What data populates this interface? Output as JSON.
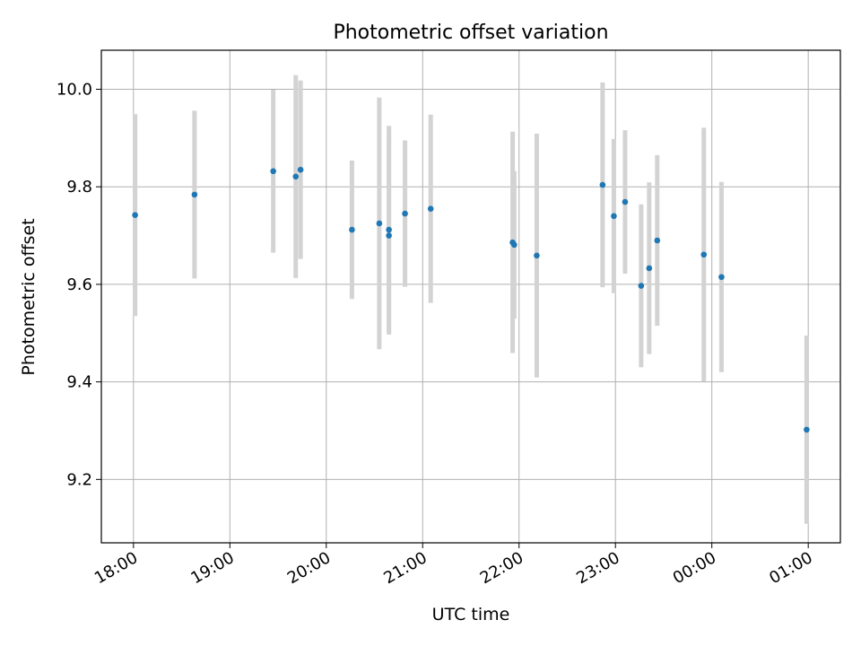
{
  "chart_data": {
    "type": "scatter",
    "title": "Photometric offset variation",
    "xlabel": "UTC time",
    "ylabel": "Photometric offset",
    "x_axis_kind": "time",
    "x_range": [
      "17:40",
      "01:20"
    ],
    "x_ticks": [
      "18:00",
      "19:00",
      "20:00",
      "21:00",
      "22:00",
      "23:00",
      "00:00",
      "01:00"
    ],
    "y_range": [
      9.07,
      10.08
    ],
    "y_ticks": [
      "9.2",
      "9.4",
      "9.6",
      "9.8",
      "10.0"
    ],
    "grid": true,
    "colors": {
      "point": "#1f77b4",
      "errorbar": "#d3d3d3",
      "grid": "#b0b0b0"
    },
    "points": [
      {
        "x": "18:01",
        "y": 9.742,
        "err": 0.207
      },
      {
        "x": "18:38",
        "y": 9.784,
        "err": 0.172
      },
      {
        "x": "19:27",
        "y": 9.832,
        "err": 0.167
      },
      {
        "x": "19:41",
        "y": 9.821,
        "err": 0.208
      },
      {
        "x": "19:44",
        "y": 9.835,
        "err": 0.183
      },
      {
        "x": "20:16",
        "y": 9.712,
        "err": 0.142
      },
      {
        "x": "20:33",
        "y": 9.725,
        "err": 0.258
      },
      {
        "x": "20:39",
        "y": 9.7,
        "err": 0.203
      },
      {
        "x": "20:39",
        "y": 9.712,
        "err": 0.213
      },
      {
        "x": "20:49",
        "y": 9.745,
        "err": 0.15
      },
      {
        "x": "21:05",
        "y": 9.755,
        "err": 0.193
      },
      {
        "x": "21:56",
        "y": 9.686,
        "err": 0.227
      },
      {
        "x": "21:57",
        "y": 9.681,
        "err": 0.151
      },
      {
        "x": "22:11",
        "y": 9.659,
        "err": 0.25
      },
      {
        "x": "22:52",
        "y": 9.804,
        "err": 0.21
      },
      {
        "x": "22:59",
        "y": 9.74,
        "err": 0.158
      },
      {
        "x": "23:06",
        "y": 9.769,
        "err": 0.147
      },
      {
        "x": "23:16",
        "y": 9.597,
        "err": 0.167
      },
      {
        "x": "23:21",
        "y": 9.633,
        "err": 0.176
      },
      {
        "x": "23:26",
        "y": 9.69,
        "err": 0.175
      },
      {
        "x": "23:55",
        "y": 9.661,
        "err": 0.26
      },
      {
        "x": "00:06",
        "y": 9.615,
        "err": 0.195
      },
      {
        "x": "00:59",
        "y": 9.302,
        "err": 0.193
      }
    ]
  }
}
